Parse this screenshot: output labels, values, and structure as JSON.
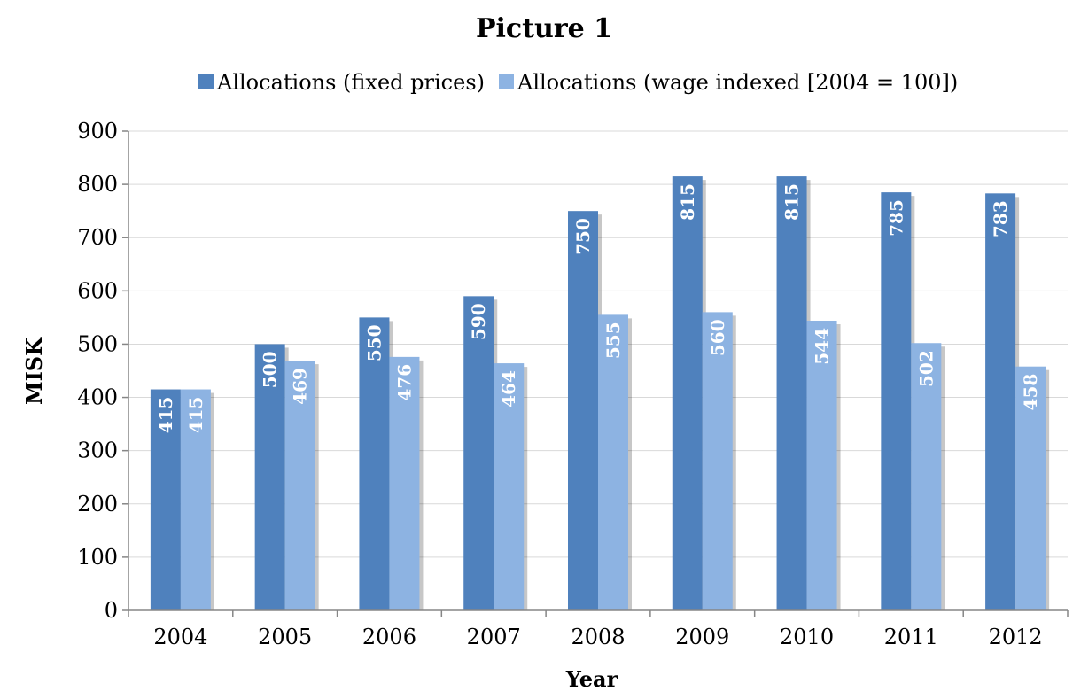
{
  "chart_data": {
    "type": "bar",
    "title": "Picture 1",
    "xlabel": "Year",
    "ylabel": "MISK",
    "ylim": [
      0,
      900
    ],
    "yticks": [
      0,
      100,
      200,
      300,
      400,
      500,
      600,
      700,
      800,
      900
    ],
    "categories": [
      "2004",
      "2005",
      "2006",
      "2007",
      "2008",
      "2009",
      "2010",
      "2011",
      "2012"
    ],
    "series": [
      {
        "name": "Allocations (fixed prices)",
        "color": "#4f81bd",
        "values": [
          415,
          500,
          550,
          590,
          750,
          815,
          815,
          785,
          783
        ]
      },
      {
        "name": "Allocations (wage indexed [2004 = 100])",
        "color": "#8db3e2",
        "values": [
          415,
          469,
          476,
          464,
          555,
          560,
          544,
          502,
          458
        ]
      }
    ],
    "legend_position": "top",
    "grid": true,
    "data_labels": true
  }
}
